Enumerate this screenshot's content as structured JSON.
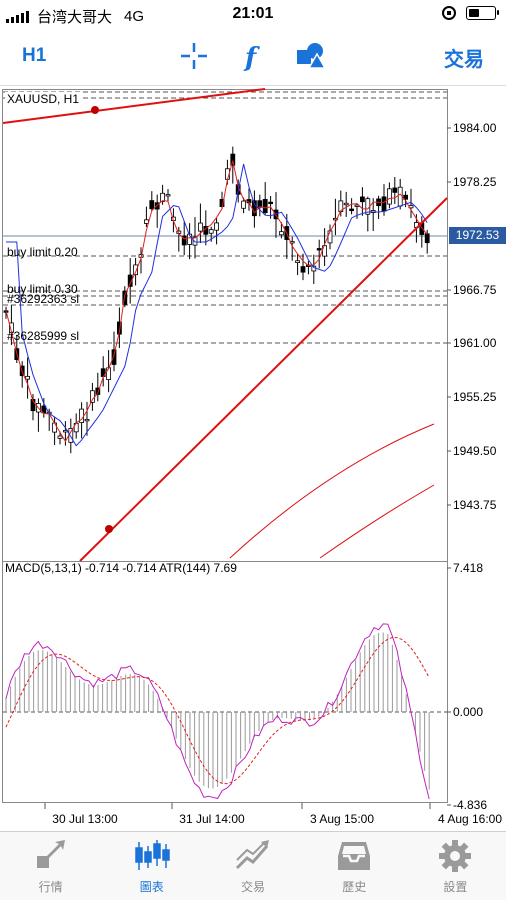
{
  "status_bar": {
    "carrier": "台湾大哥大",
    "network": "4G",
    "time": "21:01",
    "battery_icon": "battery-icon",
    "orientation_lock_icon": "lock-rotation-icon"
  },
  "toolbar": {
    "timeframe": "H1",
    "trade_label": "交易",
    "icons": [
      "crosshair-icon",
      "function-icon",
      "objects-icon"
    ]
  },
  "chart": {
    "symbol": "XAUUSD, H1",
    "current_price": "1972.53",
    "price_levels": [
      "1984.00",
      "1978.25",
      "1966.75",
      "1961.00",
      "1955.25",
      "1949.50",
      "1943.75"
    ],
    "order_labels": [
      "buy limit 0.20",
      "buy limit 0.30",
      "#36292363 sl",
      "#36285999 sl"
    ],
    "indicator_label": "MACD(5,13,1) -0.714 -0.714 ATR(144) 7.69",
    "indicator_levels": [
      "7.418",
      "0.000",
      "-4.836"
    ],
    "time_labels": [
      "30 Jul 13:00",
      "31 Jul 14:00",
      "3 Aug 15:00",
      "4 Aug 16:00"
    ],
    "colors": {
      "accent": "#1a73d9",
      "trendline": "#e01010",
      "ma_fast": "#e02020",
      "ma_slow": "#2030e0",
      "macd_line": "#c020c0",
      "signal_line": "#e02020",
      "price_tag": "#2a5aa0"
    }
  },
  "bottom_nav": [
    {
      "label": "行情",
      "icon": "quotes-icon",
      "active": false
    },
    {
      "label": "圖表",
      "icon": "chart-icon",
      "active": true
    },
    {
      "label": "交易",
      "icon": "trade-icon",
      "active": false
    },
    {
      "label": "歷史",
      "icon": "history-icon",
      "active": false
    },
    {
      "label": "設置",
      "icon": "settings-icon",
      "active": false
    }
  ]
}
